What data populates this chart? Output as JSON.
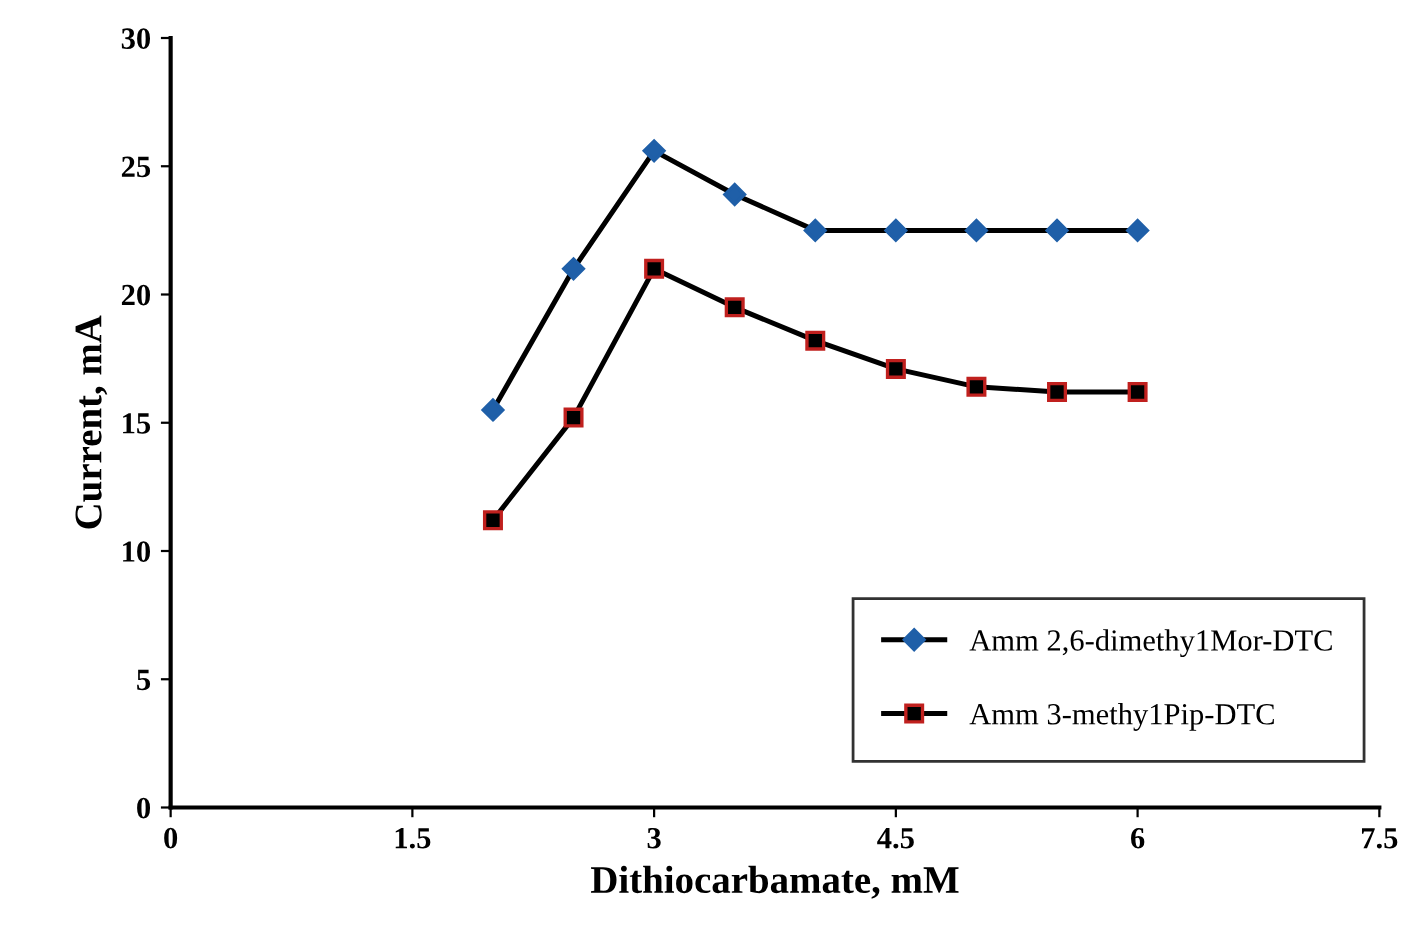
{
  "chart_data": {
    "type": "line",
    "xlabel": "Dithiocarbamate, mM",
    "ylabel": "Current, mA",
    "x": [
      2,
      2.5,
      3,
      3.5,
      4,
      4.5,
      5,
      5.5,
      6
    ],
    "series": [
      {
        "name": "Amm 2,6-dimethy1Mor-DTC",
        "color": "#1f5fa8",
        "marker": "diamond",
        "values": [
          15.5,
          21.0,
          25.6,
          23.9,
          22.5,
          22.5,
          22.5,
          22.5,
          22.5
        ]
      },
      {
        "name": "Amm 3-methy1Pip-DTC",
        "color": "#c0201e",
        "marker": "square",
        "values": [
          11.2,
          15.2,
          21.0,
          19.5,
          18.2,
          17.1,
          16.4,
          16.2,
          16.2
        ]
      }
    ],
    "xlim": [
      0,
      7.5
    ],
    "xticks": [
      0,
      1.5,
      3,
      4.5,
      6,
      7.5
    ],
    "ylim": [
      0,
      30
    ],
    "yticks": [
      0,
      5,
      10,
      15,
      20,
      25,
      30
    ],
    "grid": false,
    "legend": "bottom right",
    "line_style": "solid"
  }
}
